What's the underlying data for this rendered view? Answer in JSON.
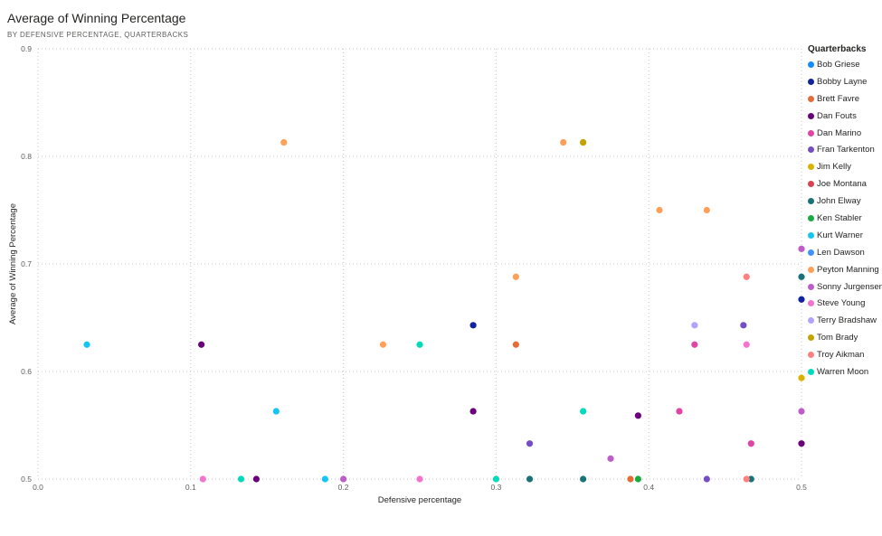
{
  "chart_data": {
    "type": "scatter",
    "title": "Average of Winning Percentage",
    "subtitle": "BY DEFENSIVE PERCENTAGE, QUARTERBACKS",
    "xlabel": "Defensive percentage",
    "ylabel": "Average of Winning Percentage",
    "xlim": [
      0,
      0.5
    ],
    "ylim": [
      0.5,
      0.9
    ],
    "x_ticks": [
      "0.0",
      "0.1",
      "0.2",
      "0.3",
      "0.4",
      "0.5"
    ],
    "y_ticks": [
      "0.5",
      "0.6",
      "0.7",
      "0.8",
      "0.9"
    ],
    "grid": true,
    "legend_title": "Quarterbacks",
    "legend_position": "right",
    "series": [
      {
        "name": "Bob Griese",
        "color": "#118DFF",
        "points": []
      },
      {
        "name": "Bobby Layne",
        "color": "#12239E",
        "points": [
          [
            0.285,
            0.643
          ],
          [
            0.5,
            0.667
          ]
        ]
      },
      {
        "name": "Brett Favre",
        "color": "#E66C37",
        "points": [
          [
            0.313,
            0.625
          ],
          [
            0.388,
            0.5
          ]
        ]
      },
      {
        "name": "Dan Fouts",
        "color": "#6B007B",
        "points": [
          [
            0.107,
            0.625
          ],
          [
            0.285,
            0.563
          ],
          [
            0.393,
            0.559
          ],
          [
            0.143,
            0.5
          ],
          [
            0.5,
            0.533
          ]
        ]
      },
      {
        "name": "Dan Marino",
        "color": "#E044A7",
        "points": [
          [
            0.43,
            0.625
          ],
          [
            0.42,
            0.563
          ],
          [
            0.467,
            0.533
          ]
        ]
      },
      {
        "name": "Fran Tarkenton",
        "color": "#744EC2",
        "points": [
          [
            0.462,
            0.643
          ],
          [
            0.322,
            0.533
          ],
          [
            0.438,
            0.5
          ]
        ]
      },
      {
        "name": "Jim Kelly",
        "color": "#D9B300",
        "points": [
          [
            0.5,
            0.594
          ]
        ]
      },
      {
        "name": "Joe Montana",
        "color": "#D64550",
        "points": []
      },
      {
        "name": "John Elway",
        "color": "#197278",
        "points": [
          [
            0.5,
            0.688
          ],
          [
            0.322,
            0.5
          ],
          [
            0.357,
            0.5
          ],
          [
            0.467,
            0.5
          ]
        ]
      },
      {
        "name": "Ken Stabler",
        "color": "#1AAB40",
        "points": [
          [
            0.393,
            0.5
          ]
        ]
      },
      {
        "name": "Kurt Warner",
        "color": "#15C6F4",
        "points": [
          [
            0.032,
            0.625
          ],
          [
            0.156,
            0.563
          ],
          [
            0.188,
            0.5
          ]
        ]
      },
      {
        "name": "Len Dawson",
        "color": "#4092FF",
        "points": []
      },
      {
        "name": "Peyton Manning",
        "color": "#FFA058",
        "points": [
          [
            0.161,
            0.813
          ],
          [
            0.344,
            0.813
          ],
          [
            0.357,
            0.813
          ],
          [
            0.407,
            0.75
          ],
          [
            0.438,
            0.75
          ],
          [
            0.313,
            0.688
          ],
          [
            0.226,
            0.625
          ]
        ]
      },
      {
        "name": "Sonny Jurgensen",
        "color": "#BE5DC9",
        "points": [
          [
            0.5,
            0.714
          ],
          [
            0.5,
            0.563
          ],
          [
            0.375,
            0.519
          ],
          [
            0.2,
            0.5
          ]
        ]
      },
      {
        "name": "Steve Young",
        "color": "#F472D0",
        "points": [
          [
            0.464,
            0.625
          ],
          [
            0.108,
            0.5
          ],
          [
            0.25,
            0.5
          ]
        ]
      },
      {
        "name": "Terry Bradshaw",
        "color": "#B5A1FF",
        "points": [
          [
            0.43,
            0.643
          ]
        ]
      },
      {
        "name": "Tom Brady",
        "color": "#C4A200",
        "points": [
          [
            0.357,
            0.813
          ]
        ]
      },
      {
        "name": "Troy Aikman",
        "color": "#FF8080",
        "points": [
          [
            0.464,
            0.688
          ],
          [
            0.464,
            0.5
          ]
        ]
      },
      {
        "name": "Warren Moon",
        "color": "#00DBBC",
        "points": [
          [
            0.25,
            0.625
          ],
          [
            0.357,
            0.563
          ],
          [
            0.133,
            0.5
          ],
          [
            0.3,
            0.5
          ]
        ]
      }
    ]
  }
}
